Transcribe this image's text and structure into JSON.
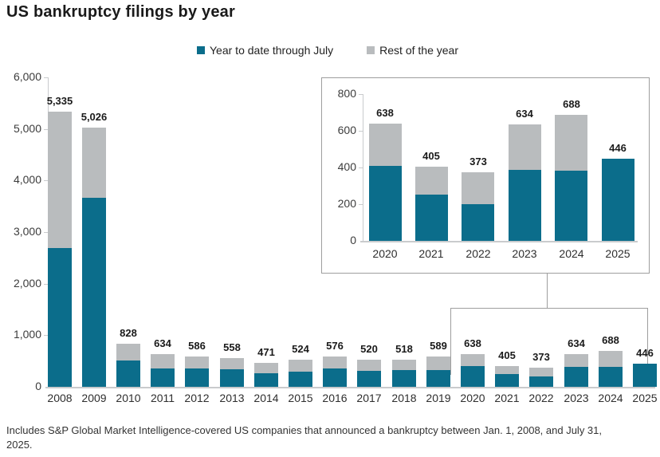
{
  "title": "US bankruptcy filings by year",
  "footnote": "Includes S&P Global Market Intelligence-covered US companies that announced a bankruptcy between Jan. 1, 2008, and July 31, 2025.",
  "colors": {
    "ytd": "#0b6d8b",
    "rest": "#b9bcbe",
    "axis": "#c9cbcd",
    "border": "#9e9e9e",
    "text": "#1a1a1a"
  },
  "legend": [
    {
      "label": "Year to date through July",
      "color_key": "ytd"
    },
    {
      "label": "Rest of the year",
      "color_key": "rest"
    }
  ],
  "chart_data": [
    {
      "id": "main",
      "type": "bar",
      "subtype": "stacked",
      "title": "US bankruptcy filings by year",
      "categories": [
        "2008",
        "2009",
        "2010",
        "2011",
        "2012",
        "2013",
        "2014",
        "2015",
        "2016",
        "2017",
        "2018",
        "2019",
        "2020",
        "2021",
        "2022",
        "2023",
        "2024",
        "2025"
      ],
      "series": [
        {
          "name": "Year to date through July",
          "color_key": "ytd",
          "values": [
            2690,
            3660,
            510,
            355,
            350,
            340,
            263,
            290,
            350,
            310,
            320,
            325,
            407,
            252,
            200,
            385,
            382,
            446
          ]
        },
        {
          "name": "Rest of the year",
          "color_key": "rest",
          "values": [
            2645,
            1366,
            318,
            279,
            236,
            218,
            208,
            234,
            226,
            210,
            198,
            264,
            231,
            153,
            173,
            249,
            306,
            0
          ]
        }
      ],
      "totals": [
        5335,
        5026,
        828,
        634,
        586,
        558,
        471,
        524,
        576,
        520,
        518,
        589,
        638,
        405,
        373,
        634,
        688,
        446
      ],
      "totals_labels": [
        "5,335",
        "5,026",
        "828",
        "634",
        "586",
        "558",
        "471",
        "524",
        "576",
        "520",
        "518",
        "589",
        "638",
        "405",
        "373",
        "634",
        "688",
        "446"
      ],
      "ylim": [
        0,
        6000
      ],
      "yticks": [
        {
          "value": 6000,
          "label": "6,000"
        },
        {
          "value": 5000,
          "label": "5,000"
        },
        {
          "value": 4000,
          "label": "4,000"
        },
        {
          "value": 3000,
          "label": "3,000"
        },
        {
          "value": 2000,
          "label": "2,000"
        },
        {
          "value": 1000,
          "label": "1,000"
        },
        {
          "value": 0,
          "label": "0"
        }
      ],
      "grid": false,
      "legend_position": "top"
    },
    {
      "id": "inset",
      "type": "bar",
      "subtype": "stacked",
      "title": "Inset detail: 2020-2025",
      "categories": [
        "2020",
        "2021",
        "2022",
        "2023",
        "2024",
        "2025"
      ],
      "series": [
        {
          "name": "Year to date through July",
          "color_key": "ytd",
          "values": [
            407,
            252,
            200,
            385,
            382,
            446
          ]
        },
        {
          "name": "Rest of the year",
          "color_key": "rest",
          "values": [
            231,
            153,
            173,
            249,
            306,
            0
          ]
        }
      ],
      "totals": [
        638,
        405,
        373,
        634,
        688,
        446
      ],
      "totals_labels": [
        "638",
        "405",
        "373",
        "634",
        "688",
        "446"
      ],
      "ylim": [
        0,
        800
      ],
      "yticks": [
        {
          "value": 800,
          "label": "800"
        },
        {
          "value": 600,
          "label": "600"
        },
        {
          "value": 400,
          "label": "400"
        },
        {
          "value": 200,
          "label": "200"
        },
        {
          "value": 0,
          "label": "0"
        }
      ],
      "grid": false,
      "legend_position": "none"
    }
  ]
}
